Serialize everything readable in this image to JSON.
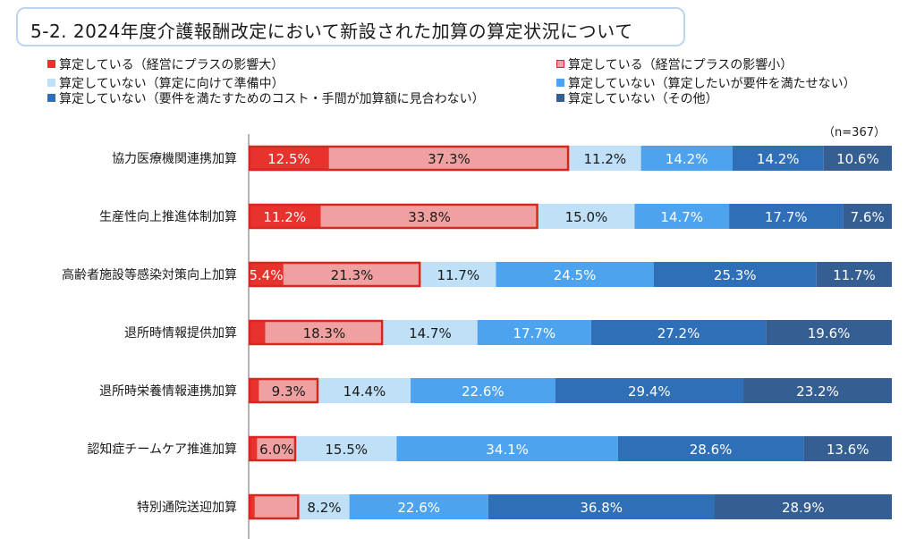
{
  "title": "5-2. 2024年度介護報酬改定において新設された加算の算定状況について",
  "chart_data": {
    "type": "bar",
    "orientation": "horizontal",
    "stacked": "percent",
    "note": "（n=367）",
    "categories": [
      "協力医療機関連携加算",
      "生産性向上推進体制加算",
      "高齢者施設等感染対策向上加算",
      "退所時情報提供加算",
      "退所時栄養情報連携加算",
      "認知症チームケア推進加算",
      "特別通院送迎加算"
    ],
    "series": [
      {
        "name": "算定している（経営にプラスの影響大）",
        "color": "#e8322d",
        "values": [
          12.5,
          11.2,
          5.4,
          2.6,
          1.6,
          1.3,
          1.0
        ],
        "labels": [
          "12.5%",
          "11.2%",
          "5.4%",
          "",
          "",
          "",
          ""
        ]
      },
      {
        "name": "算定している（経営にプラスの影響小）",
        "color": "#f0a0a0",
        "values": [
          37.3,
          33.8,
          21.3,
          18.3,
          9.3,
          6.0,
          7.2
        ],
        "labels": [
          "37.3%",
          "33.8%",
          "21.3%",
          "18.3%",
          "9.3%",
          "6.0%",
          ""
        ]
      },
      {
        "name": "算定していない（算定に向けて準備中）",
        "color": "#bfe0f7",
        "values": [
          11.2,
          15.0,
          11.7,
          14.7,
          14.4,
          15.5,
          8.2
        ],
        "labels": [
          "11.2%",
          "15.0%",
          "11.7%",
          "14.7%",
          "14.4%",
          "15.5%",
          "8.2%"
        ]
      },
      {
        "name": "算定していない（算定したいが要件を満たせない）",
        "color": "#4ea3ee",
        "values": [
          14.2,
          14.7,
          24.5,
          17.7,
          22.6,
          34.1,
          22.6
        ],
        "labels": [
          "14.2%",
          "14.7%",
          "24.5%",
          "17.7%",
          "22.6%",
          "34.1%",
          "22.6%"
        ]
      },
      {
        "name": "算定していない（要件を満たすためのコスト・手間が加算額に見合わない）",
        "color": "#2f6fb7",
        "values": [
          14.2,
          17.7,
          25.3,
          27.2,
          29.4,
          28.6,
          36.8
        ],
        "labels": [
          "14.2%",
          "17.7%",
          "25.3%",
          "27.2%",
          "29.4%",
          "28.6%",
          "36.8%"
        ]
      },
      {
        "name": "算定していない（その他）",
        "color": "#355f93",
        "values": [
          10.6,
          7.6,
          11.7,
          19.6,
          23.2,
          13.6,
          28.9
        ],
        "labels": [
          "10.6%",
          "7.6%",
          "11.7%",
          "19.6%",
          "23.2%",
          "13.6%",
          "28.9%"
        ]
      }
    ],
    "highlight_color": "#d9271f",
    "xlim": [
      0,
      100
    ],
    "grid": false,
    "legend_position": "top"
  }
}
